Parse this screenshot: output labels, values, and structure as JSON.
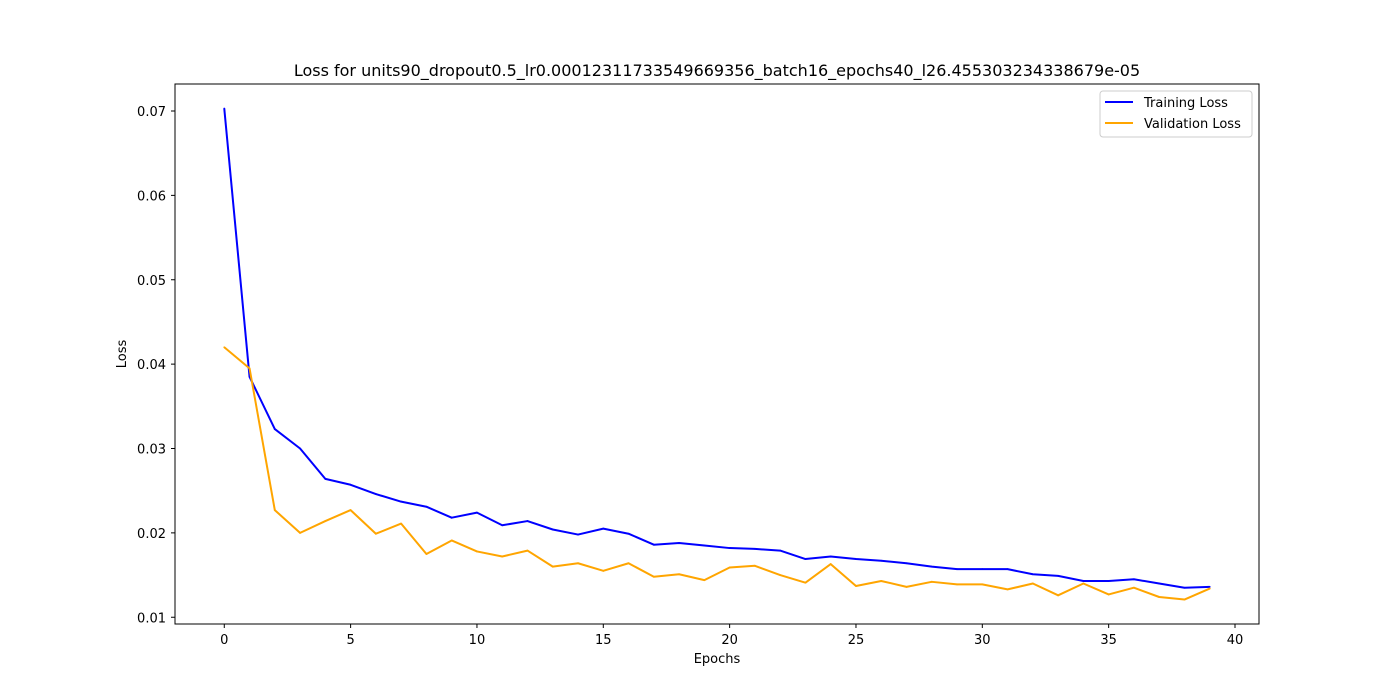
{
  "chart_data": {
    "type": "line",
    "title": "Loss for units90_dropout0.5_lr0.00012311733549669356_batch16_epochs40_l26.455303234338679e-05",
    "xlabel": "Epochs",
    "ylabel": "Loss",
    "xlim": [
      -1.95,
      40.95
    ],
    "ylim": [
      0.0092,
      0.0732
    ],
    "xticks": [
      0,
      5,
      10,
      15,
      20,
      25,
      30,
      35,
      40
    ],
    "yticks": [
      0.01,
      0.02,
      0.03,
      0.04,
      0.05,
      0.06,
      0.07
    ],
    "ytick_labels": [
      "0.01",
      "0.02",
      "0.03",
      "0.04",
      "0.05",
      "0.06",
      "0.07"
    ],
    "grid": false,
    "legend_position": "top-right",
    "x": [
      0,
      1,
      2,
      3,
      4,
      5,
      6,
      7,
      8,
      9,
      10,
      11,
      12,
      13,
      14,
      15,
      16,
      17,
      18,
      19,
      20,
      21,
      22,
      23,
      24,
      25,
      26,
      27,
      28,
      29,
      30,
      31,
      32,
      33,
      34,
      35,
      36,
      37,
      38,
      39
    ],
    "series": [
      {
        "name": "Training Loss",
        "color": "#0000ff",
        "values": [
          0.0703,
          0.0385,
          0.0323,
          0.03,
          0.0264,
          0.0257,
          0.0246,
          0.0237,
          0.0231,
          0.0218,
          0.0224,
          0.0209,
          0.0214,
          0.0204,
          0.0198,
          0.0205,
          0.0199,
          0.0186,
          0.0188,
          0.0185,
          0.0182,
          0.0181,
          0.0179,
          0.0169,
          0.0172,
          0.0169,
          0.0167,
          0.0164,
          0.016,
          0.0157,
          0.0157,
          0.0157,
          0.0151,
          0.0149,
          0.0143,
          0.0143,
          0.0145,
          0.014,
          0.0135,
          0.0136
        ]
      },
      {
        "name": "Validation Loss",
        "color": "#ffa500",
        "values": [
          0.042,
          0.0395,
          0.0227,
          0.02,
          0.0214,
          0.0227,
          0.0199,
          0.0211,
          0.0175,
          0.0191,
          0.0178,
          0.0172,
          0.0179,
          0.016,
          0.0164,
          0.0155,
          0.0164,
          0.0148,
          0.0151,
          0.0144,
          0.0159,
          0.0161,
          0.015,
          0.0141,
          0.0163,
          0.0137,
          0.0143,
          0.0136,
          0.0142,
          0.0139,
          0.0139,
          0.0133,
          0.014,
          0.0126,
          0.014,
          0.0127,
          0.0135,
          0.0124,
          0.0121,
          0.0134
        ]
      }
    ]
  }
}
